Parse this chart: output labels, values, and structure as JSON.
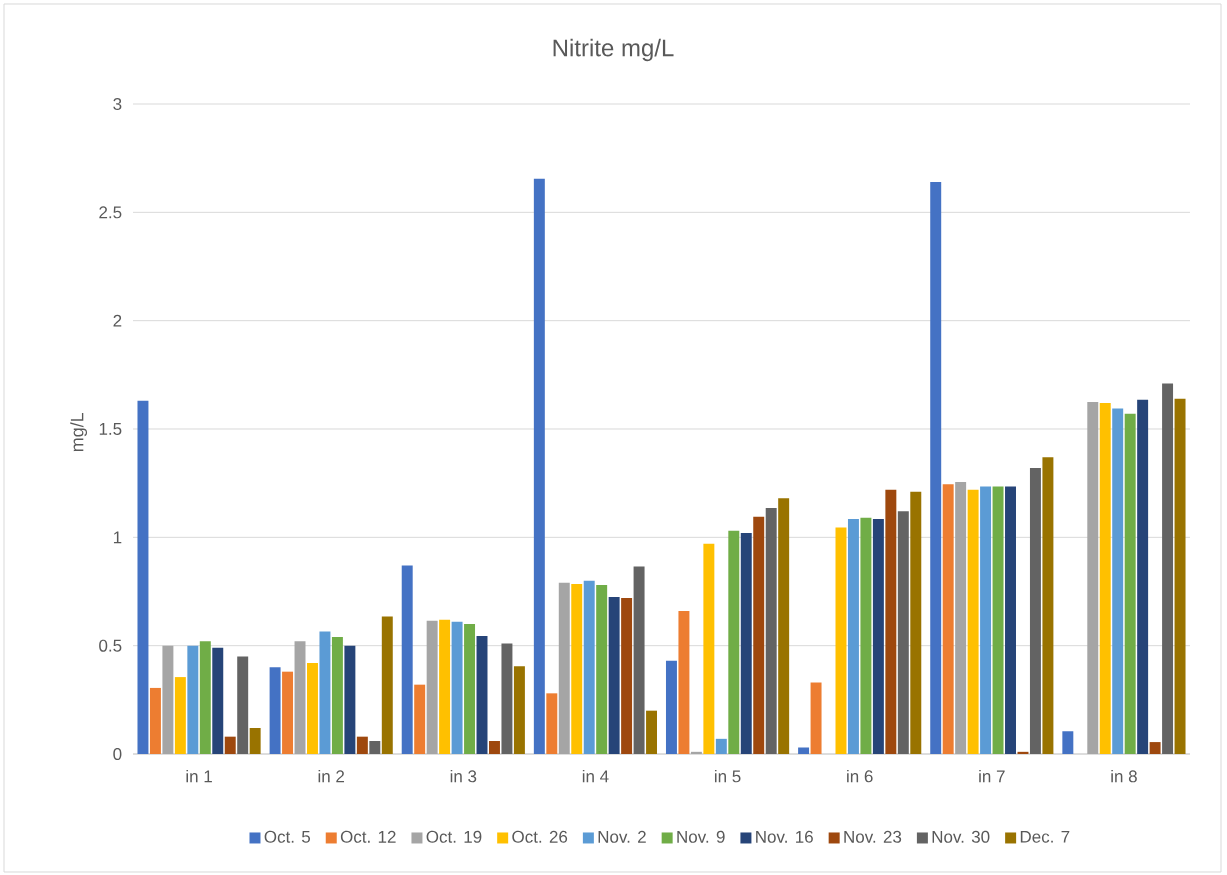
{
  "chart_data": {
    "type": "bar",
    "title": "Nitrite mg/L",
    "ylabel": "mg/L",
    "categories": [
      "in 1",
      "in 2",
      "in 3",
      "in 4",
      "in 5",
      "in 6",
      "in 7",
      "in 8"
    ],
    "series": [
      {
        "name": "Oct. 5",
        "color": "#4472c4",
        "values": [
          1.63,
          0.4,
          0.87,
          2.655,
          0.43,
          0.03,
          2.64,
          0.105
        ]
      },
      {
        "name": "Oct. 12",
        "color": "#ed7d31",
        "values": [
          0.305,
          0.38,
          0.32,
          0.28,
          0.66,
          0.33,
          1.245,
          null
        ]
      },
      {
        "name": "Oct. 19",
        "color": "#a5a5a5",
        "values": [
          0.5,
          0.52,
          0.615,
          0.79,
          0.01,
          null,
          1.255,
          1.625
        ]
      },
      {
        "name": "Oct. 26",
        "color": "#ffc000",
        "values": [
          0.355,
          0.42,
          0.62,
          0.785,
          0.97,
          1.045,
          1.22,
          1.62
        ]
      },
      {
        "name": "Nov. 2",
        "color": "#5b9bd5",
        "values": [
          0.5,
          0.565,
          0.61,
          0.8,
          0.07,
          1.085,
          1.235,
          1.595
        ]
      },
      {
        "name": "Nov. 9",
        "color": "#70ad47",
        "values": [
          0.52,
          0.54,
          0.6,
          0.78,
          1.03,
          1.09,
          1.235,
          1.57
        ]
      },
      {
        "name": "Nov. 16",
        "color": "#264478",
        "values": [
          0.49,
          0.5,
          0.545,
          0.725,
          1.02,
          1.085,
          1.235,
          1.635
        ]
      },
      {
        "name": "Nov. 23",
        "color": "#9e480e",
        "values": [
          0.08,
          0.08,
          0.06,
          0.72,
          1.095,
          1.22,
          0.01,
          0.055
        ]
      },
      {
        "name": "Nov. 30",
        "color": "#636363",
        "values": [
          0.45,
          0.06,
          0.51,
          0.865,
          1.135,
          1.12,
          1.32,
          1.71
        ]
      },
      {
        "name": "Dec. 7",
        "color": "#997300",
        "values": [
          0.12,
          0.635,
          0.405,
          0.2,
          1.18,
          1.21,
          1.37,
          1.64
        ]
      }
    ],
    "ylim": [
      0,
      3
    ],
    "yticks": [
      0,
      0.5,
      1,
      1.5,
      2,
      2.5,
      3
    ],
    "grid": "y",
    "legend": "bottom"
  }
}
